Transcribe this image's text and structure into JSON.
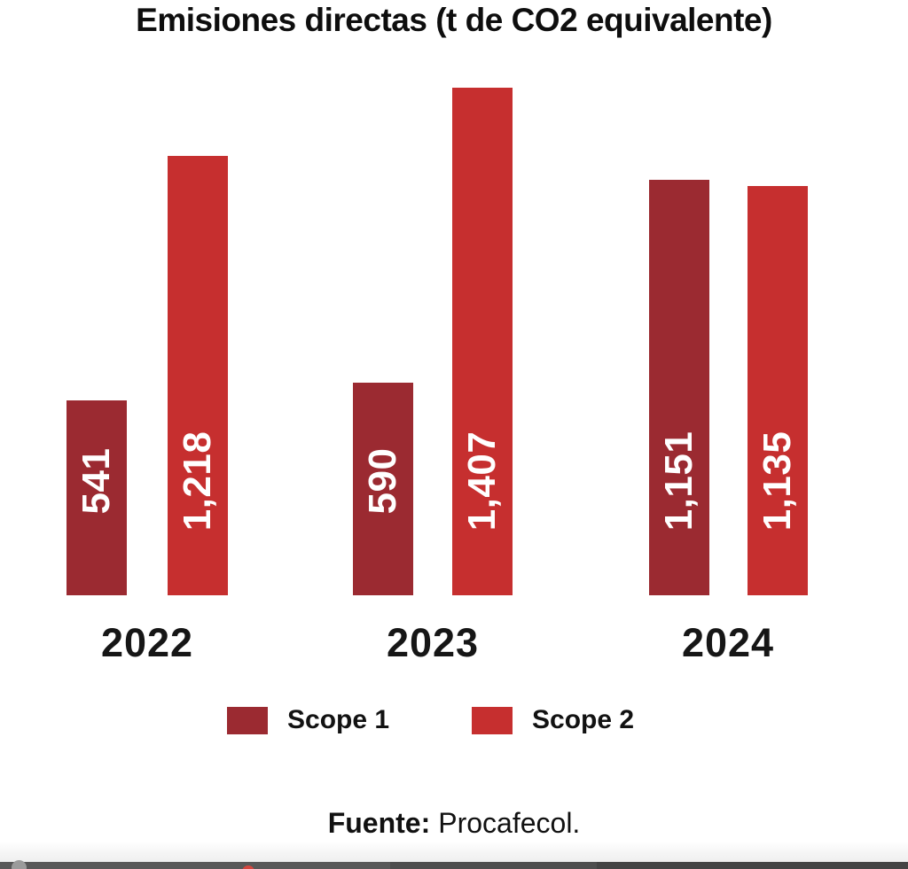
{
  "chart_data": {
    "type": "bar",
    "title": "Emisiones directas (t de CO2 equivalente)",
    "categories": [
      "2022",
      "2023",
      "2024"
    ],
    "series": [
      {
        "name": "Scope 1",
        "color": "#9B2A31",
        "values": [
          541,
          590,
          1151
        ],
        "value_labels": [
          "541",
          "590",
          "1,151"
        ]
      },
      {
        "name": "Scope 2",
        "color": "#C62F2F",
        "values": [
          1218,
          1407,
          1135
        ],
        "value_labels": [
          "1,218",
          "1,407",
          "1,135"
        ]
      }
    ],
    "ylim": [
      0,
      1407
    ],
    "grid": false,
    "axes_shown": false,
    "legend_position": "bottom",
    "bar_label_rotation": -90,
    "bar_label_color": "#ffffff",
    "background_color": "#ffffff",
    "text_color": "#0e0e0e"
  },
  "source": {
    "label": "Fuente:",
    "text": "Procafecol."
  },
  "bottom_bar": {
    "strip_colors": [
      "#585858",
      "#4e4e4e",
      "#444444"
    ],
    "gray_dot_color": "#9b9b9b",
    "red_dot_color": "#d7473f"
  }
}
